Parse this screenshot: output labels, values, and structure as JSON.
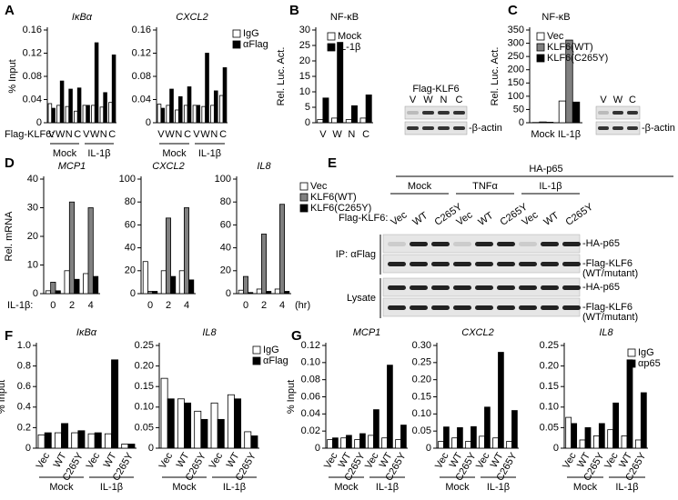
{
  "chart_data": [
    {
      "type": "bar",
      "panel": "A",
      "title": "IκBα",
      "ylabel": "% Input",
      "xlabel": "Flag-KLF6:",
      "categories": [
        "V",
        "W",
        "N",
        "C",
        "V",
        "W",
        "N",
        "C"
      ],
      "groups": [
        "Mock",
        "IL-1β"
      ],
      "series": [
        {
          "name": "IgG",
          "color": "#ffffff",
          "values": [
            0.033,
            0.03,
            0.028,
            0.02,
            0.03,
            0.03,
            0.027,
            0.035
          ]
        },
        {
          "name": "αFlag",
          "color": "#000000",
          "values": [
            0.025,
            0.072,
            0.058,
            0.06,
            0.03,
            0.138,
            0.052,
            0.117
          ]
        }
      ],
      "ylim": [
        0,
        0.16
      ],
      "yticks": [
        0,
        0.04,
        0.08,
        0.12,
        0.16
      ]
    },
    {
      "type": "bar",
      "title": "CXCL2",
      "categories": [
        "V",
        "W",
        "N",
        "C",
        "V",
        "W",
        "N",
        "C"
      ],
      "groups": [
        "Mock",
        "IL-1β"
      ],
      "series": [
        {
          "name": "IgG",
          "color": "#ffffff",
          "values": [
            0.032,
            0.03,
            0.022,
            0.03,
            0.03,
            0.028,
            0.03,
            0.047
          ]
        },
        {
          "name": "αFlag",
          "color": "#000000",
          "values": [
            0.025,
            0.058,
            0.045,
            0.062,
            0.03,
            0.12,
            0.055,
            0.095
          ]
        }
      ],
      "ylim": [
        0,
        0.16
      ],
      "yticks": [
        0,
        0.04,
        0.08,
        0.12,
        0.16
      ],
      "legend": "upper right"
    },
    {
      "type": "bar",
      "panel": "B",
      "title": "NF-κB",
      "ylabel": "Rel. Luc. Act.",
      "categories": [
        "V",
        "W",
        "N",
        "C"
      ],
      "series": [
        {
          "name": "Mock",
          "color": "#ffffff",
          "values": [
            1,
            1.5,
            1,
            1.5
          ]
        },
        {
          "name": "IL-1β",
          "color": "#000000",
          "values": [
            8,
            26,
            5.5,
            9
          ]
        }
      ],
      "ylim": [
        0,
        30
      ],
      "yticks": [
        0,
        5,
        10,
        15,
        20,
        25,
        30
      ],
      "legend": "upper right",
      "blot": {
        "title": "Flag-KLF6",
        "lanes": [
          "V",
          "W",
          "N",
          "C"
        ],
        "row_labels": [
          "-β-actin"
        ]
      }
    },
    {
      "type": "bar",
      "panel": "C",
      "title": "NF-κB",
      "ylabel": "Rel. Luc. Act.",
      "categories": [
        "Mock",
        "IL-1β"
      ],
      "series": [
        {
          "name": "Vec",
          "color": "#ffffff",
          "values": [
            1,
            82
          ]
        },
        {
          "name": "KLF6(WT)",
          "color": "#808080",
          "values": [
            3,
            312
          ]
        },
        {
          "name": "KLF6(C265Y)",
          "color": "#000000",
          "values": [
            2,
            78
          ]
        }
      ],
      "ylim": [
        0,
        350
      ],
      "yticks": [
        0,
        50,
        100,
        150,
        200,
        250,
        300,
        350
      ],
      "legend": "upper right",
      "blot": {
        "lanes": [
          "V",
          "W",
          "C"
        ],
        "row_labels": [
          "-β-actin"
        ]
      }
    },
    {
      "type": "bar",
      "panel": "D",
      "title": "MCP1",
      "ylabel": "Rel. mRNA",
      "xlabel": "IL-1β:",
      "categories": [
        "0",
        "2",
        "4"
      ],
      "series": [
        {
          "name": "Vec",
          "color": "#ffffff",
          "values": [
            1,
            8,
            7
          ]
        },
        {
          "name": "KLF6(WT)",
          "color": "#808080",
          "values": [
            4,
            32,
            30
          ]
        },
        {
          "name": "KLF6(C265Y)",
          "color": "#000000",
          "values": [
            1,
            5,
            6
          ]
        }
      ],
      "ylim": [
        0,
        40
      ],
      "yticks": [
        0,
        10,
        20,
        30,
        40
      ]
    },
    {
      "type": "bar",
      "title": "CXCL2",
      "categories": [
        "0",
        "2",
        "4"
      ],
      "series": [
        {
          "name": "Vec",
          "color": "#ffffff",
          "values": [
            28,
            20,
            20
          ]
        },
        {
          "name": "KLF6(WT)",
          "color": "#808080",
          "values": [
            2,
            66,
            75
          ]
        },
        {
          "name": "KLF6(C265Y)",
          "color": "#000000",
          "values": [
            2,
            15,
            12
          ]
        }
      ],
      "ylim": [
        0,
        100
      ],
      "yticks": [
        0,
        20,
        40,
        60,
        80,
        100
      ]
    },
    {
      "type": "bar",
      "title": "IL8",
      "x_unit": "(hr)",
      "categories": [
        "0",
        "2",
        "4"
      ],
      "series": [
        {
          "name": "Vec",
          "color": "#ffffff",
          "values": [
            3,
            4,
            4
          ]
        },
        {
          "name": "KLF6(WT)",
          "color": "#808080",
          "values": [
            15,
            52,
            78
          ]
        },
        {
          "name": "KLF6(C265Y)",
          "color": "#000000",
          "values": [
            1,
            2,
            2
          ]
        }
      ],
      "ylim": [
        0,
        100
      ],
      "yticks": [
        0,
        20,
        40,
        60,
        80,
        100
      ],
      "legend": "upper right"
    },
    {
      "type": "bar",
      "panel": "F",
      "title": "IκBα",
      "ylabel": "% Input",
      "categories": [
        "Vec",
        "WT",
        "C265Y",
        "Vec",
        "WT",
        "C265Y"
      ],
      "groups": [
        "Mock",
        "IL-1β"
      ],
      "series": [
        {
          "name": "IgG",
          "color": "#ffffff",
          "values": [
            0.13,
            0.15,
            0.15,
            0.14,
            0.14,
            0.04
          ]
        },
        {
          "name": "αFlag",
          "color": "#000000",
          "values": [
            0.15,
            0.24,
            0.17,
            0.15,
            0.86,
            0.04
          ]
        }
      ],
      "ylim": [
        0,
        1
      ],
      "yticks": [
        0,
        0.2,
        0.4,
        0.6,
        0.8,
        {
          "value": 1,
          "label": "1.0"
        }
      ]
    },
    {
      "type": "bar",
      "title": "IL8",
      "categories": [
        "Vec",
        "WT",
        "C265Y",
        "Vec",
        "WT",
        "C265Y"
      ],
      "groups": [
        "Mock",
        "IL-1β"
      ],
      "series": [
        {
          "name": "IgG",
          "color": "#ffffff",
          "values": [
            0.17,
            0.12,
            0.09,
            0.11,
            0.13,
            0.04
          ]
        },
        {
          "name": "αFlag",
          "color": "#000000",
          "values": [
            0.12,
            0.11,
            0.07,
            0.07,
            0.12,
            0.03
          ]
        }
      ],
      "ylim": [
        0,
        0.25
      ],
      "yticks": [
        0,
        0.05,
        {
          "value": 0.1,
          "label": "0.10"
        },
        0.15,
        {
          "value": 0.2,
          "label": "0.20"
        },
        0.25
      ],
      "legend": "upper right"
    },
    {
      "type": "bar",
      "panel": "G",
      "title": "MCP1",
      "ylabel": "% Input",
      "categories": [
        "Vec",
        "WT",
        "C265Y",
        "Vec",
        "WT",
        "C265Y"
      ],
      "groups": [
        "Mock",
        "IL-1β"
      ],
      "series": [
        {
          "name": "IgG",
          "color": "#ffffff",
          "values": [
            0.01,
            0.012,
            0.01,
            0.015,
            0.012,
            0.01
          ]
        },
        {
          "name": "αp65",
          "color": "#000000",
          "values": [
            0.012,
            0.015,
            0.017,
            0.045,
            0.097,
            0.027
          ]
        }
      ],
      "ylim": [
        0,
        0.12
      ],
      "yticks": [
        0,
        0.02,
        0.04,
        0.06,
        0.08,
        {
          "value": 0.1,
          "label": "0.10"
        },
        0.12
      ]
    },
    {
      "type": "bar",
      "title": "CXCL2",
      "categories": [
        "Vec",
        "WT",
        "C265Y",
        "Vec",
        "WT",
        "C265Y"
      ],
      "groups": [
        "Mock",
        "IL-1β"
      ],
      "series": [
        {
          "name": "IgG",
          "color": "#ffffff",
          "values": [
            0.02,
            0.03,
            0.02,
            0.035,
            0.03,
            0.02
          ]
        },
        {
          "name": "αp65",
          "color": "#000000",
          "values": [
            0.062,
            0.06,
            0.063,
            0.12,
            0.28,
            0.11
          ]
        }
      ],
      "ylim": [
        0,
        0.3
      ],
      "yticks": [
        0,
        0.05,
        {
          "value": 0.1,
          "label": "0.10"
        },
        0.15,
        {
          "value": 0.2,
          "label": "0.20"
        },
        0.25,
        {
          "value": 0.3,
          "label": "0.30"
        }
      ]
    },
    {
      "type": "bar",
      "title": "IL8",
      "categories": [
        "Vec",
        "WT",
        "C265Y",
        "Vec",
        "WT",
        "C265Y"
      ],
      "groups": [
        "Mock",
        "IL-1β"
      ],
      "series": [
        {
          "name": "IgG",
          "color": "#ffffff",
          "values": [
            0.075,
            0.02,
            0.03,
            0.045,
            0.03,
            0.02
          ]
        },
        {
          "name": "αp65",
          "color": "#000000",
          "values": [
            0.06,
            0.05,
            0.06,
            0.11,
            0.215,
            0.135
          ]
        }
      ],
      "ylim": [
        0,
        0.25
      ],
      "yticks": [
        0,
        0.05,
        {
          "value": 0.1,
          "label": "0.10"
        },
        0.15,
        {
          "value": 0.2,
          "label": "0.20"
        },
        0.25
      ],
      "legend": "upper right"
    }
  ],
  "panel_e": {
    "panel": "E",
    "title": "HA-p65",
    "treatments": [
      "Mock",
      "TNFα",
      "IL-1β"
    ],
    "lane_label": "Flag-KLF6:",
    "lanes": [
      "Vec",
      "WT",
      "C265Y",
      "Vec",
      "WT",
      "C265Y",
      "Vec",
      "WT",
      "C265Y"
    ],
    "sections": [
      {
        "label": "IP: αFlag",
        "rows": [
          [
            "-HA-p65"
          ],
          [
            "-Flag-KLF6",
            "(WT/mutant)"
          ]
        ]
      },
      {
        "label": "Lysate",
        "rows": [
          [
            "-HA-p65"
          ],
          [
            "-Flag-KLF6",
            "(WT/mutant)"
          ]
        ]
      }
    ]
  }
}
